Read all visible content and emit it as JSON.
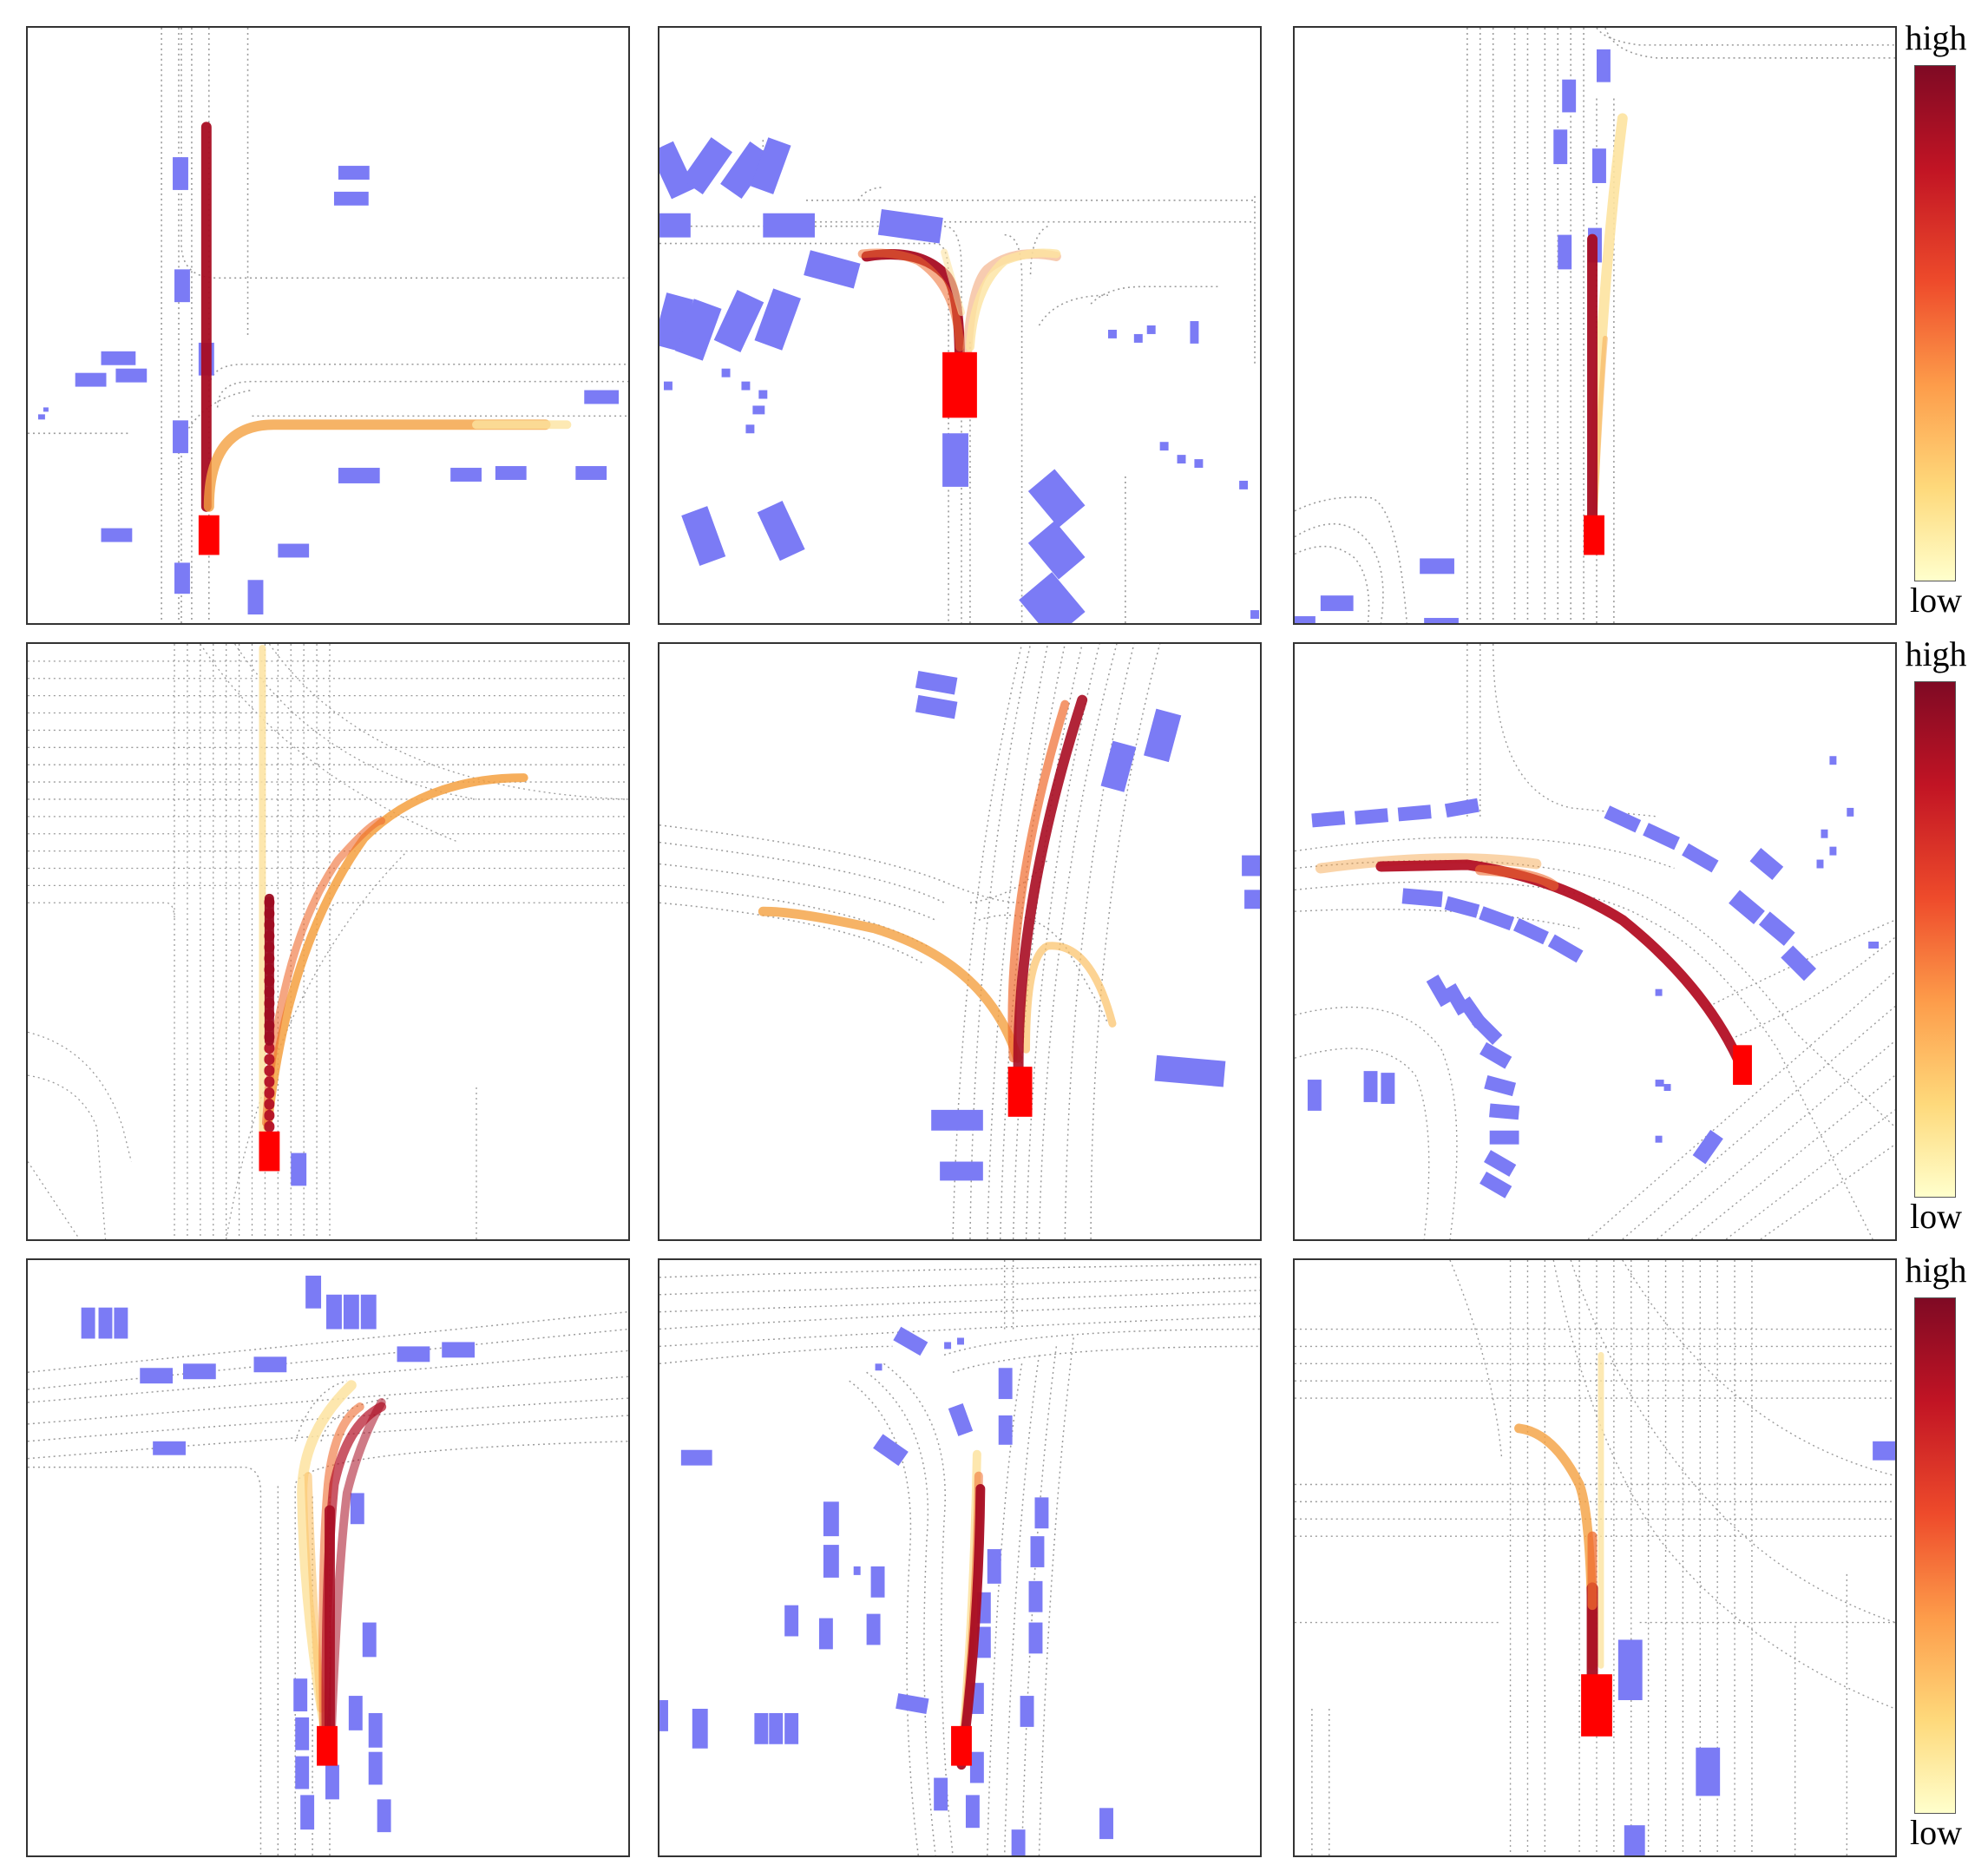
{
  "colorbar": {
    "high_label": "high",
    "low_label": "low"
  },
  "colors": {
    "ego_vehicle": "#ff0000",
    "agent_vehicle": "#7b7bf5",
    "lane_line": "#9a9a9a",
    "trajectory_high": "#8b0a1f",
    "trajectory_mid": "#ef6b2e",
    "trajectory_low": "#fee8a0"
  },
  "panels": [
    {
      "id": "r1c1"
    },
    {
      "id": "r1c2"
    },
    {
      "id": "r1c3"
    },
    {
      "id": "r2c1"
    },
    {
      "id": "r2c2"
    },
    {
      "id": "r2c3"
    },
    {
      "id": "r3c1"
    },
    {
      "id": "r3c2"
    },
    {
      "id": "r3c3"
    }
  ]
}
